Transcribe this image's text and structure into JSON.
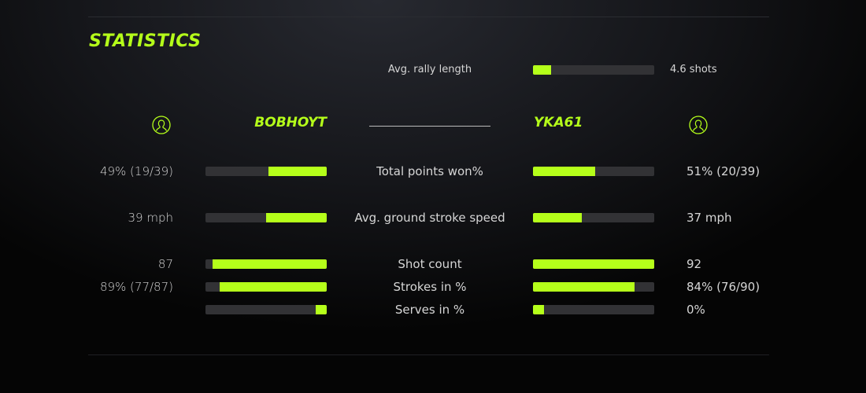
{
  "title": "STATISTICS",
  "accent_color": "#b5ff1a",
  "rally": {
    "label": "Avg. rally length",
    "value": "4.6 shots",
    "fill_percent": 15
  },
  "players": {
    "left": {
      "name": "BOBHOYT",
      "icon": "user-circle-icon"
    },
    "right": {
      "name": "YKA61",
      "icon": "user-circle-icon"
    }
  },
  "stats": [
    {
      "label": "Total points won%",
      "left": "49% (19/39)",
      "right": "51% (20/39)",
      "left_fill": 48,
      "right_fill": 51
    },
    {
      "label": "Avg. ground stroke speed",
      "left": "39 mph",
      "right": "37 mph",
      "left_fill": 50,
      "right_fill": 40
    },
    {
      "label": "Shot count",
      "left": "87",
      "right": "92",
      "left_fill": 94,
      "right_fill": 100
    },
    {
      "label": "Strokes in %",
      "left": "89% (77/87)",
      "right": "84% (76/90)",
      "left_fill": 88,
      "right_fill": 84
    },
    {
      "label": "Serves in %",
      "left": "",
      "right": "0%",
      "left_fill": 9,
      "right_fill": 9
    }
  ]
}
